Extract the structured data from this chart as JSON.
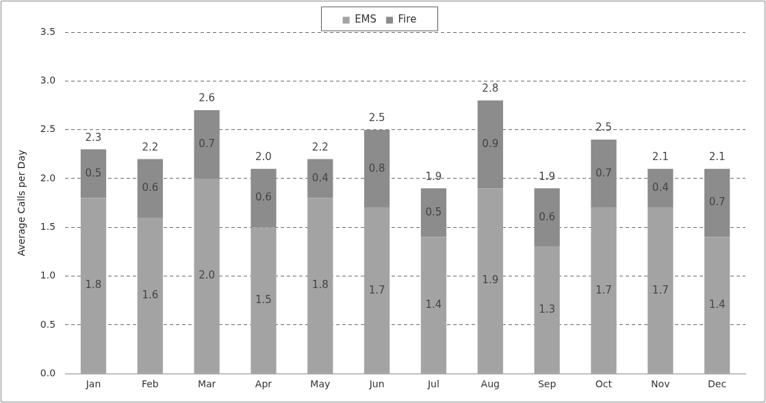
{
  "chart_data": {
    "type": "bar",
    "stacked": true,
    "ylabel": "Average Calls per Day",
    "categories": [
      "Jan",
      "Feb",
      "Mar",
      "Apr",
      "May",
      "Jun",
      "Jul",
      "Aug",
      "Sep",
      "Oct",
      "Nov",
      "Dec"
    ],
    "series": [
      {
        "name": "EMS",
        "color": "#a3a3a3",
        "values": [
          1.8,
          1.6,
          2.0,
          1.5,
          1.8,
          1.7,
          1.4,
          1.9,
          1.3,
          1.7,
          1.7,
          1.4
        ],
        "value_labels": [
          "1.8",
          "1.6",
          "2.0",
          "1.5",
          "1.8",
          "1.7",
          "1.4",
          "1.9",
          "1.3",
          "1.7",
          "1.7",
          "1.4"
        ]
      },
      {
        "name": "Fire",
        "color": "#8c8c8c",
        "values": [
          0.5,
          0.6,
          0.7,
          0.6,
          0.4,
          0.8,
          0.5,
          0.9,
          0.6,
          0.7,
          0.4,
          0.7
        ],
        "value_labels": [
          "0.5",
          "0.6",
          "0.7",
          "0.6",
          "0.4",
          "0.8",
          "0.5",
          "0.9",
          "0.6",
          "0.7",
          "0.4",
          "0.7"
        ]
      }
    ],
    "totals": [
      "2.3",
      "2.2",
      "2.6",
      "2.0",
      "2.2",
      "2.5",
      "1.9",
      "2.8",
      "1.9",
      "2.5",
      "2.1",
      "2.1"
    ],
    "ylim": [
      0,
      3.5
    ],
    "yticks": [
      {
        "value": 0,
        "label": "0.0"
      },
      0.5,
      {
        "value": 1,
        "label": "1.0"
      },
      1.5,
      {
        "value": 2,
        "label": "2.0"
      },
      2.5,
      {
        "value": 3,
        "label": "3.0"
      },
      3.5
    ],
    "grid": "y",
    "legend": "top"
  }
}
